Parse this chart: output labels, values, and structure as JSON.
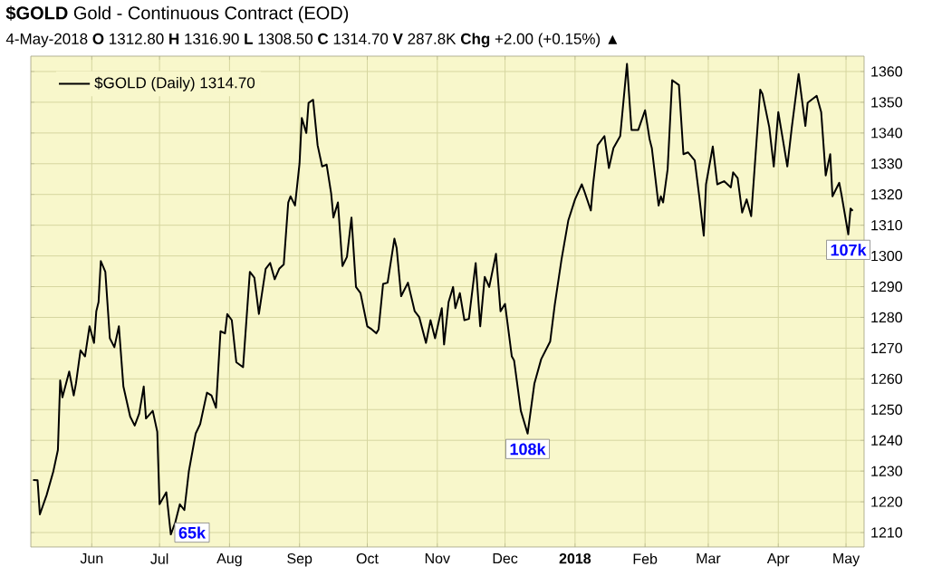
{
  "chart_data": {
    "type": "line",
    "title": "**$GOLD** Gold - Continuous Contract (EOD)",
    "subtitle": "4-May-2018      **O** 1312.80 **H** 1316.90 **L** 1308.50 **C** 1314.70 **V** 287.8K **Chg** +2.00 (+0.15%) ▲",
    "x": [
      "2017-05-06",
      "2017-05-08",
      "2017-05-09",
      "2017-05-12",
      "2017-05-15",
      "2017-05-17",
      "2017-05-18",
      "2017-05-19",
      "2017-05-22",
      "2017-05-24",
      "2017-05-25",
      "2017-05-27",
      "2017-05-29",
      "2017-05-31",
      "2017-06-02",
      "2017-06-03",
      "2017-06-04",
      "2017-06-05",
      "2017-06-07",
      "2017-06-09",
      "2017-06-11",
      "2017-06-13",
      "2017-06-15",
      "2017-06-18",
      "2017-06-20",
      "2017-06-22",
      "2017-06-24",
      "2017-06-25",
      "2017-06-28",
      "2017-06-30",
      "2017-07-01",
      "2017-07-04",
      "2017-07-06",
      "2017-07-08",
      "2017-07-10",
      "2017-07-12",
      "2017-07-14",
      "2017-07-17",
      "2017-07-19",
      "2017-07-22",
      "2017-07-24",
      "2017-07-26",
      "2017-07-28",
      "2017-07-30",
      "2017-07-31",
      "2017-08-02",
      "2017-08-04",
      "2017-08-07",
      "2017-08-10",
      "2017-08-12",
      "2017-08-14",
      "2017-08-17",
      "2017-08-19",
      "2017-08-21",
      "2017-08-23",
      "2017-08-25",
      "2017-08-27",
      "2017-08-28",
      "2017-08-30",
      "2017-09-01",
      "2017-09-02",
      "2017-09-04",
      "2017-09-05",
      "2017-09-07",
      "2017-09-09",
      "2017-09-11",
      "2017-09-13",
      "2017-09-15",
      "2017-09-16",
      "2017-09-18",
      "2017-09-20",
      "2017-09-22",
      "2017-09-24",
      "2017-09-26",
      "2017-09-28",
      "2017-10-01",
      "2017-10-03",
      "2017-10-05",
      "2017-10-06",
      "2017-10-08",
      "2017-10-10",
      "2017-10-13",
      "2017-10-14",
      "2017-10-16",
      "2017-10-19",
      "2017-10-22",
      "2017-10-24",
      "2017-10-27",
      "2017-10-29",
      "2017-10-31",
      "2017-11-03",
      "2017-11-04",
      "2017-11-06",
      "2017-11-08",
      "2017-11-09",
      "2017-11-11",
      "2017-11-13",
      "2017-11-15",
      "2017-11-18",
      "2017-11-20",
      "2017-11-22",
      "2017-11-24",
      "2017-11-27",
      "2017-11-29",
      "2017-12-01",
      "2017-12-04",
      "2017-12-05",
      "2017-12-08",
      "2017-12-11",
      "2017-12-14",
      "2017-12-17",
      "2017-12-21",
      "2017-12-23",
      "2017-12-26",
      "2017-12-29",
      "2018-01-01",
      "2018-01-04",
      "2018-01-05",
      "2018-01-08",
      "2018-01-09",
      "2018-01-11",
      "2018-01-14",
      "2018-01-16",
      "2018-01-18",
      "2018-01-21",
      "2018-01-24",
      "2018-01-26",
      "2018-01-29",
      "2018-02-01",
      "2018-02-03",
      "2018-02-04",
      "2018-02-07",
      "2018-02-08",
      "2018-02-09",
      "2018-02-11",
      "2018-02-13",
      "2018-02-16",
      "2018-02-18",
      "2018-02-20",
      "2018-02-23",
      "2018-02-25",
      "2018-02-27",
      "2018-02-28",
      "2018-03-03",
      "2018-03-05",
      "2018-03-08",
      "2018-03-11",
      "2018-03-12",
      "2018-03-14",
      "2018-03-16",
      "2018-03-18",
      "2018-03-20",
      "2018-03-24",
      "2018-03-25",
      "2018-03-28",
      "2018-03-30",
      "2018-04-01",
      "2018-04-03",
      "2018-04-05",
      "2018-04-07",
      "2018-04-10",
      "2018-04-13",
      "2018-04-14",
      "2018-04-18",
      "2018-04-20",
      "2018-04-22",
      "2018-04-24",
      "2018-04-25",
      "2018-04-28",
      "2018-04-29",
      "2018-05-02",
      "2018-05-03",
      "2018-05-04"
    ],
    "series": [
      {
        "name": "$GOLD (Daily) 1314.70",
        "color": "#000000",
        "values": [
          1227.1,
          1227.0,
          1215.9,
          1222.2,
          1230.0,
          1236.9,
          1259.5,
          1254.0,
          1262.4,
          1254.6,
          1258.5,
          1269.3,
          1267.3,
          1277.1,
          1271.7,
          1282.0,
          1285.0,
          1298.3,
          1294.8,
          1273.2,
          1270.3,
          1277.1,
          1257.5,
          1247.7,
          1244.8,
          1248.7,
          1257.5,
          1247.1,
          1249.6,
          1242.8,
          1219.2,
          1223.1,
          1209.4,
          1213.4,
          1219.2,
          1217.3,
          1230.0,
          1242.2,
          1245.3,
          1255.5,
          1254.6,
          1250.6,
          1275.5,
          1274.8,
          1281.1,
          1279.1,
          1265.4,
          1263.8,
          1294.8,
          1292.9,
          1281.1,
          1295.8,
          1297.7,
          1292.4,
          1295.8,
          1297.2,
          1317.4,
          1319.4,
          1316.4,
          1330.1,
          1344.9,
          1340.0,
          1349.8,
          1350.8,
          1336.0,
          1329.1,
          1329.7,
          1320.3,
          1312.5,
          1317.4,
          1296.7,
          1299.7,
          1312.5,
          1289.9,
          1287.9,
          1277.1,
          1276.1,
          1274.8,
          1276.1,
          1290.9,
          1291.3,
          1305.6,
          1302.6,
          1286.9,
          1291.3,
          1282.0,
          1280.1,
          1271.7,
          1279.1,
          1273.2,
          1283.0,
          1271.2,
          1285.0,
          1289.9,
          1283.0,
          1287.9,
          1279.1,
          1279.5,
          1297.7,
          1277.1,
          1293.2,
          1289.9,
          1300.7,
          1282.0,
          1284.4,
          1267.3,
          1266.0,
          1249.6,
          1242.2,
          1258.5,
          1266.4,
          1272.2,
          1284.0,
          1298.8,
          1311.5,
          1318.4,
          1323.3,
          1321.3,
          1314.8,
          1323.3,
          1336.0,
          1339.0,
          1328.6,
          1335.1,
          1339.0,
          1362.5,
          1341.0,
          1341.0,
          1347.4,
          1338.0,
          1335.1,
          1316.4,
          1319.4,
          1317.4,
          1328.2,
          1357.2,
          1355.6,
          1333.1,
          1333.7,
          1331.1,
          1319.4,
          1306.6,
          1323.3,
          1335.6,
          1323.3,
          1324.3,
          1322.3,
          1327.2,
          1325.3,
          1314.1,
          1318.4,
          1312.9,
          1354.1,
          1352.7,
          1341.9,
          1329.1,
          1346.8,
          1338.0,
          1329.1,
          1341.9,
          1359.2,
          1342.3,
          1349.8,
          1352.1,
          1346.8,
          1326.2,
          1333.1,
          1319.4,
          1323.8,
          1319.9,
          1307.0,
          1315.4,
          1314.7
        ]
      }
    ],
    "xlim": [
      "2017-05-05",
      "2018-05-09"
    ],
    "xticks": [
      {
        "value": "2017-06-01",
        "label": "Jun"
      },
      {
        "value": "2017-07-01",
        "label": "Jul"
      },
      {
        "value": "2017-08-01",
        "label": "Aug"
      },
      {
        "value": "2017-09-01",
        "label": "Sep"
      },
      {
        "value": "2017-10-01",
        "label": "Oct"
      },
      {
        "value": "2017-11-01",
        "label": "Nov"
      },
      {
        "value": "2017-12-01",
        "label": "Dec"
      },
      {
        "value": "2018-01-01",
        "label": "**2018**"
      },
      {
        "value": "2018-02-01",
        "label": "Feb"
      },
      {
        "value": "2018-03-01",
        "label": "Mar"
      },
      {
        "value": "2018-04-01",
        "label": "Apr"
      },
      {
        "value": "2018-05-01",
        "label": "May"
      }
    ],
    "ylim": [
      1205.3,
      1365
    ],
    "yticks": [
      1210,
      1220,
      1230,
      1240,
      1250,
      1260,
      1270,
      1280,
      1290,
      1300,
      1310,
      1320,
      1330,
      1340,
      1350,
      1360
    ],
    "grid": true,
    "legend": "top left",
    "line_style": "solid",
    "annotations": [
      {
        "text": "65k",
        "x": "2017-07-06",
        "y": 1209.4
      },
      {
        "text": "108k",
        "x": "2017-12-11",
        "y": 1242.2
      },
      {
        "text": "107k",
        "x": "2018-05-02",
        "y": 1307.0
      }
    ]
  }
}
